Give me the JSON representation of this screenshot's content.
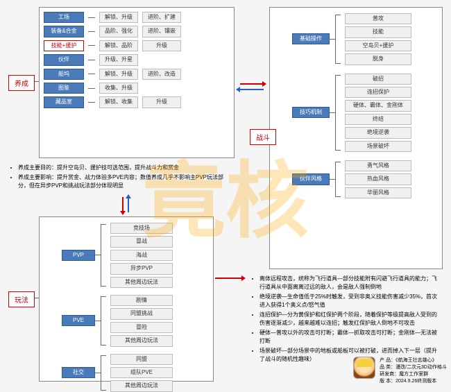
{
  "watermark": "竟核",
  "sections": {
    "growth": {
      "label": "养成"
    },
    "combat": {
      "label": "战斗"
    },
    "gameplay": {
      "label": "玩法"
    }
  },
  "growth": {
    "rows": [
      {
        "cat": "工场",
        "c1": "解锁、升级",
        "c2": "进阶、扩建",
        "c3": ""
      },
      {
        "cat": "装备&合金",
        "c1": "品阶、强化",
        "c2": "进阶、镶嵌",
        "c3": ""
      },
      {
        "cat": "技能+援护",
        "c1": "解锁、品阶",
        "c2": "升级",
        "c3": "",
        "highlight": true
      },
      {
        "cat": "伙伴",
        "c1": "升级、升星",
        "c2": "",
        "c3": ""
      },
      {
        "cat": "船坞",
        "c1": "解锁、升级",
        "c2": "进阶、改造",
        "c3": ""
      },
      {
        "cat": "图鉴",
        "c1": "收集、升级",
        "c2": "",
        "c3": ""
      },
      {
        "cat": "藏品室",
        "c1": "解锁、收集",
        "c2": "升级",
        "c3": ""
      }
    ],
    "notes": [
      "养成主要目的：提升空岛贝、援护技可选范围，提升战斗力和赏金",
      "养成主要影响：提升赏金、战力体验多PVE内容；数值养成几乎不影响主PVP玩法部分，但在异步PVP和挑战玩法部分体现明显"
    ]
  },
  "combat": {
    "groups": [
      {
        "cat": "基础操作",
        "items": [
          "普攻",
          "技能",
          "空岛贝+援护",
          "脱身"
        ]
      },
      {
        "cat": "技巧机制",
        "items": [
          "破招",
          "连招保护",
          "硬体、霸体、金刚体",
          "终结",
          "绝境逆袭",
          "场景破坏"
        ]
      },
      {
        "cat": "伙伴风格",
        "items": [
          "勇气风格",
          "热血风格",
          "华丽风格"
        ]
      }
    ],
    "notes": [
      "离体远程攻击，统称为飞行道具—部分技能附有闪避飞行道具的能力；飞行道具从中面离离过远的敌人，会是敌人强制倒地",
      "绝境逆袭—生命值低于25%时触发，受到非奥义技能伤害减少35%，首次进入获得1个奥义点/怒气值",
      "连招保护—分为黄保护和红保护两个阶段，随着保护等级提高敌人受到的伤害逐渐减少，越来越难以连招；触发红保护敌人倒地不可攻击",
      "硬体—普攻以外的攻击可打断；霸体—抓取攻击可打断；金刚体—无法被打断",
      "场景破坏—部分场景中的地板或船板可以被打破，进而掉入下一层（提升了战斗的随机性趣味）"
    ]
  },
  "gameplay": {
    "groups": [
      {
        "cat": "PVP",
        "items": [
          "竞技场",
          "冒战",
          "海战",
          "异步PVP",
          "其他周边玩法"
        ]
      },
      {
        "cat": "PVE",
        "items": [
          "剧情",
          "同盟挑战",
          "冒险",
          "其他周边玩法"
        ]
      },
      {
        "cat": "社交",
        "items": [
          "同盟",
          "组队PVE",
          "其他周边玩法"
        ]
      }
    ]
  },
  "product": {
    "name_label": "产 品：",
    "name": "《航海王壮志雄心》",
    "type_label": "品 类：",
    "type": "漫改/二次元3D动作格斗",
    "dev_label": "研发商：",
    "dev": "魔方工作室群",
    "ver_label": "版 本：",
    "ver": "2024.9.26终测版本"
  },
  "colors": {
    "blue": "#4a7ab8",
    "red": "#c00000",
    "gray_bg": "#f0f0f0",
    "panel_border": "#888888",
    "arrow_blue": "#2a5ad0"
  }
}
